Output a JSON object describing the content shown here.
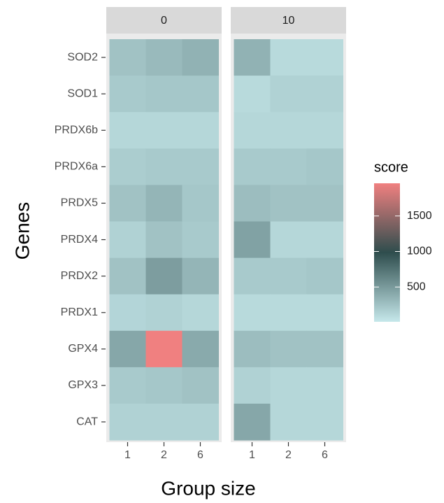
{
  "chart_data": {
    "type": "heatmap",
    "xlabel": "Group size",
    "ylabel": "Genes",
    "categories": [
      "1",
      "2",
      "6"
    ],
    "genes": [
      "SOD2",
      "SOD1",
      "PRDX6b",
      "PRDX6a",
      "PRDX5",
      "PRDX4",
      "PRDX2",
      "PRDX1",
      "GPX4",
      "GPX3",
      "CAT"
    ],
    "facets": [
      {
        "label": "0",
        "values": [
          [
            250,
            300,
            350
          ],
          [
            200,
            220,
            220
          ],
          [
            120,
            120,
            120
          ],
          [
            180,
            200,
            200
          ],
          [
            250,
            330,
            220
          ],
          [
            150,
            250,
            200
          ],
          [
            250,
            480,
            330
          ],
          [
            130,
            150,
            120
          ],
          [
            420,
            1960,
            400
          ],
          [
            200,
            220,
            250
          ],
          [
            150,
            150,
            150
          ]
        ]
      },
      {
        "label": "10",
        "values": [
          [
            350,
            100,
            100
          ],
          [
            100,
            150,
            150
          ],
          [
            120,
            120,
            120
          ],
          [
            200,
            200,
            220
          ],
          [
            280,
            250,
            250
          ],
          [
            450,
            120,
            120
          ],
          [
            200,
            200,
            220
          ],
          [
            100,
            100,
            100
          ],
          [
            280,
            250,
            250
          ],
          [
            150,
            120,
            120
          ],
          [
            420,
            120,
            120
          ]
        ]
      }
    ],
    "legend_title": "score",
    "colorbar_lim": [
      10,
      1960
    ],
    "colorbar_ticks": [
      500,
      1000,
      1500
    ],
    "colors": [
      "#c6e8eb",
      "#2e4d4d",
      "#f08080"
    ]
  }
}
